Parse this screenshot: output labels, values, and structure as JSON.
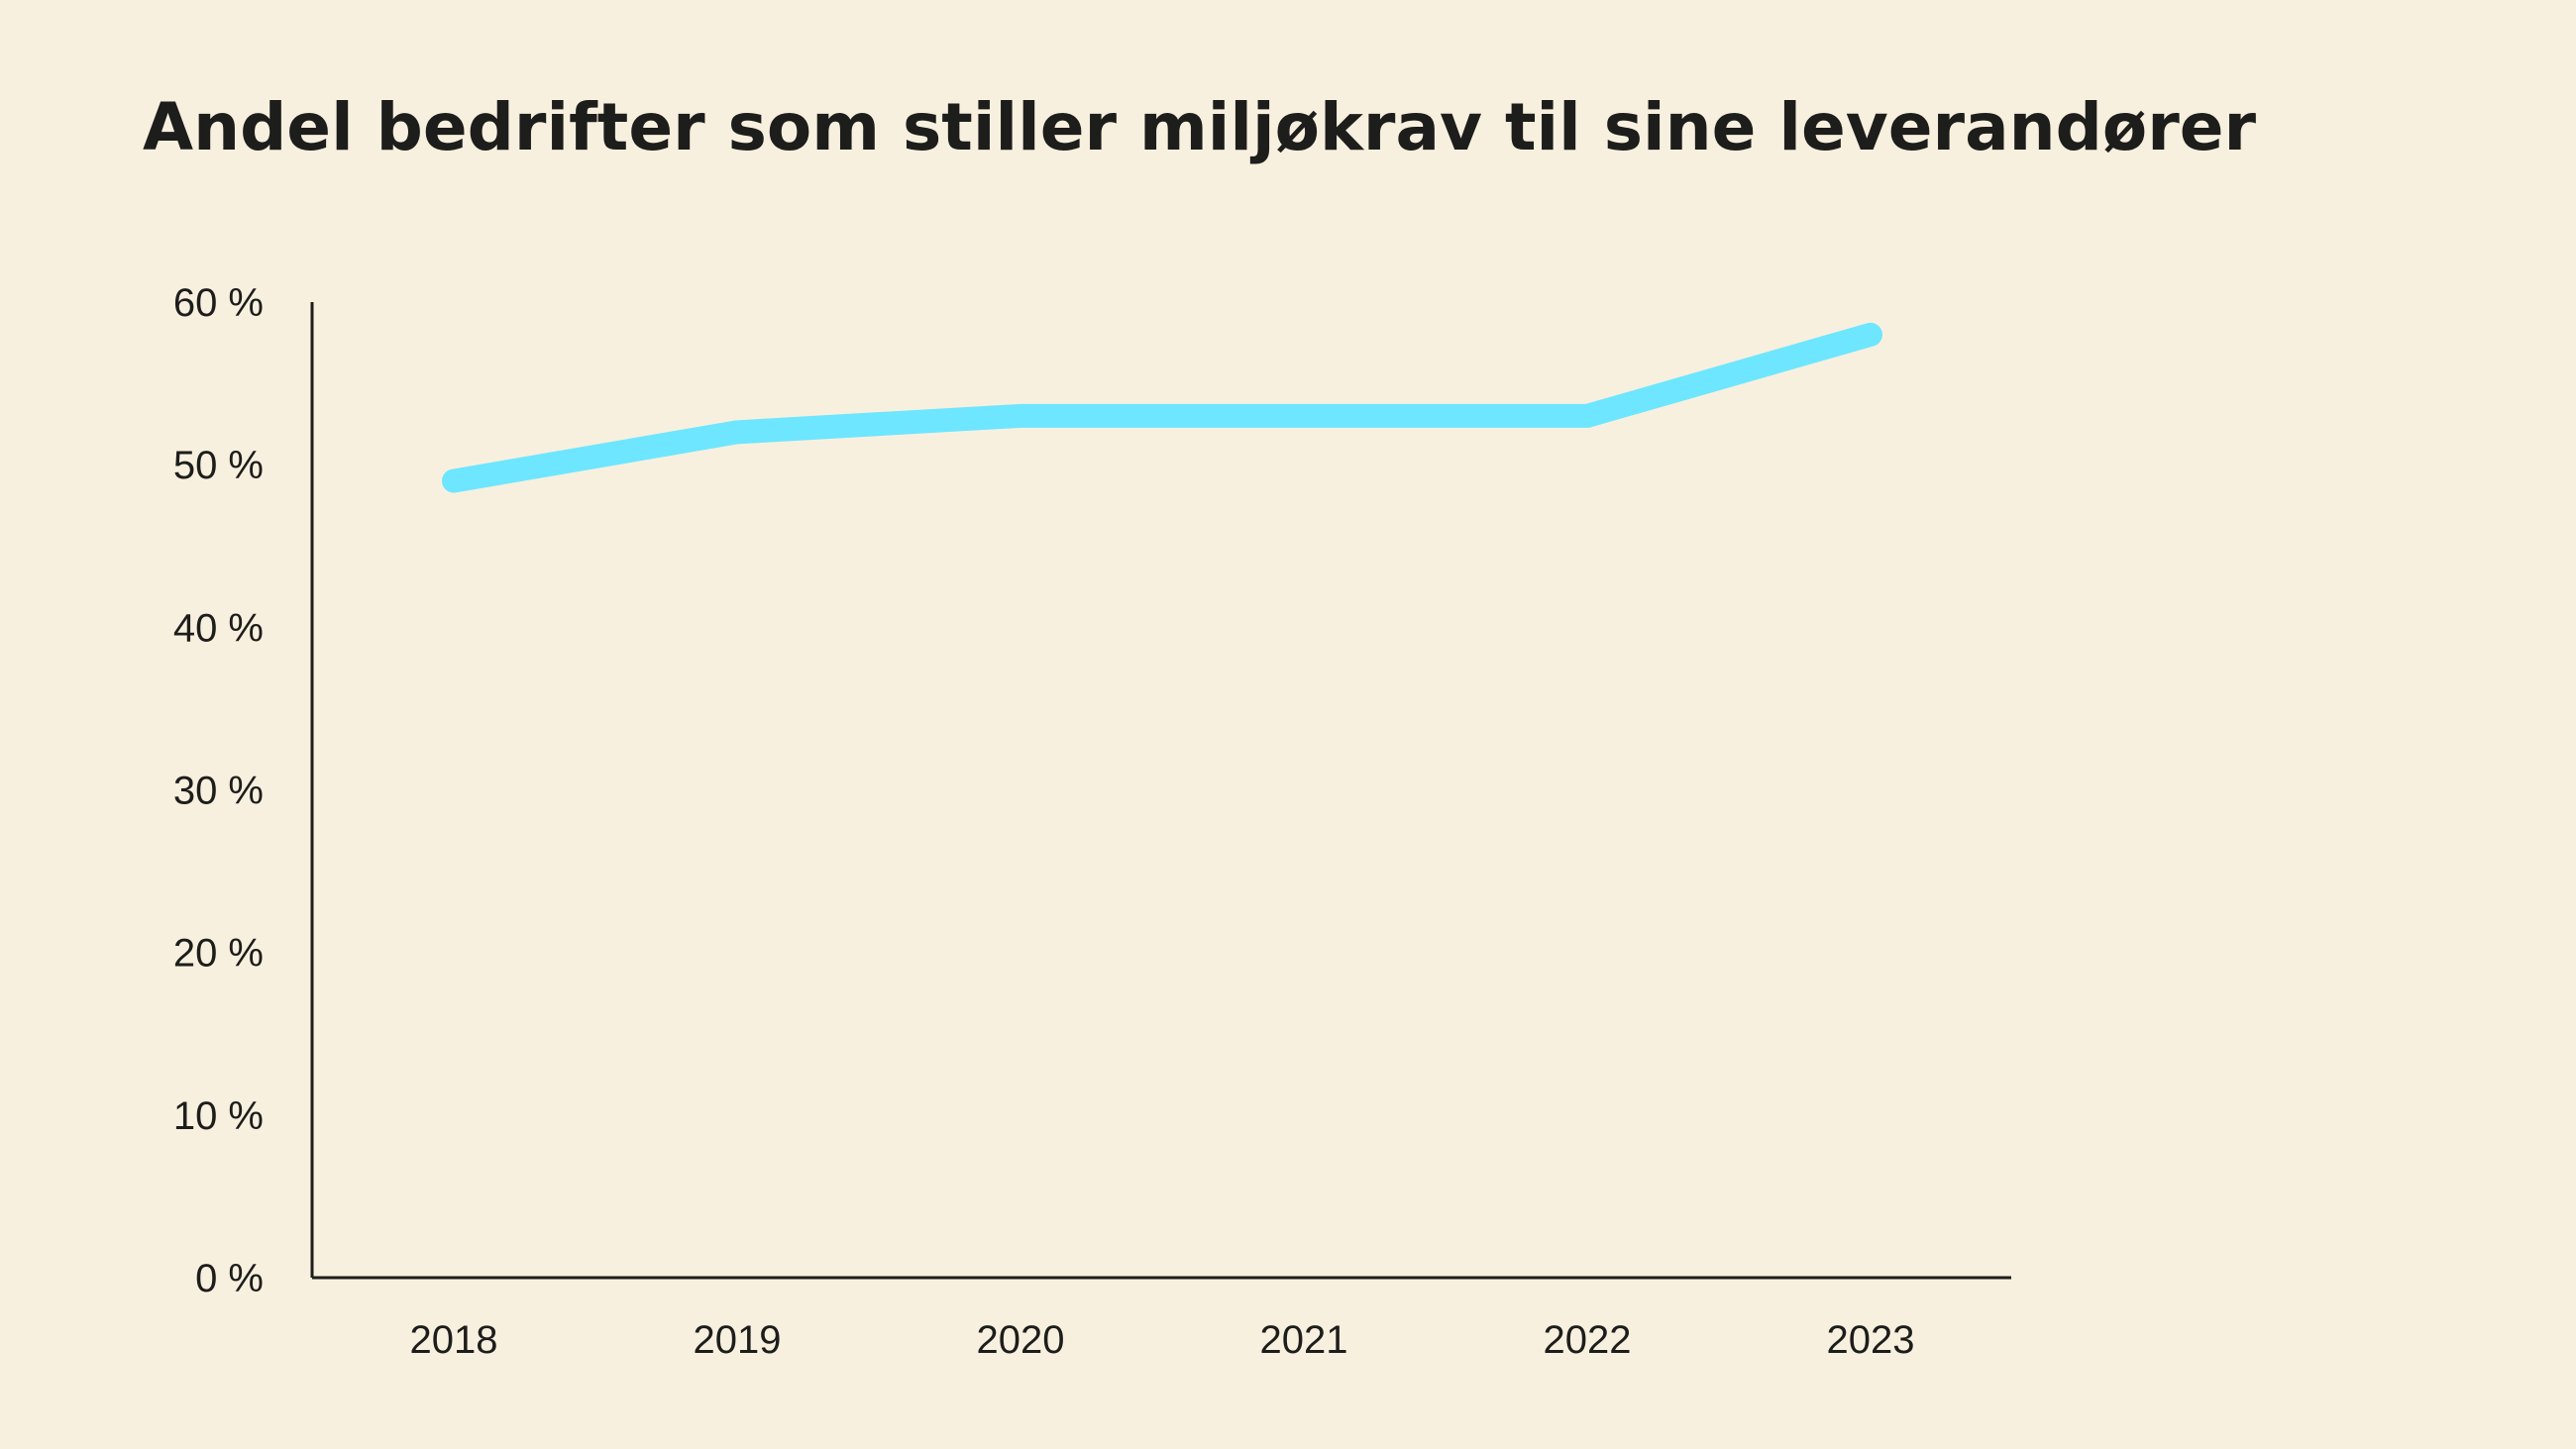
{
  "chart_data": {
    "type": "line",
    "title": "Andel bedrifter som stiller miljøkrav til sine leverandører",
    "xlabel": "",
    "ylabel": "",
    "x": [
      "2018",
      "2019",
      "2020",
      "2021",
      "2022",
      "2023"
    ],
    "series": [
      {
        "values": [
          49,
          52,
          53,
          53,
          53,
          58
        ]
      }
    ],
    "ylim": [
      0,
      60
    ],
    "y_ticks": [
      0,
      10,
      20,
      30,
      40,
      50,
      60
    ],
    "y_tick_labels": [
      "0 %",
      "10 %",
      "20 %",
      "30 %",
      "40 %",
      "50 %",
      "60 %"
    ],
    "grid": false,
    "legend": "none",
    "colors": {
      "line": "#6ee6ff",
      "axis": "#1d1d1b",
      "background": "#f8f0df"
    }
  }
}
